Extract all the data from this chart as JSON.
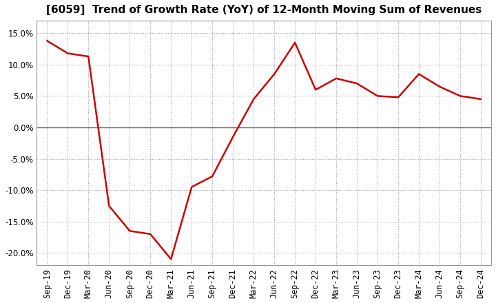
{
  "title": "[6059]  Trend of Growth Rate (YoY) of 12-Month Moving Sum of Revenues",
  "x_labels": [
    "Sep-19",
    "Dec-19",
    "Mar-20",
    "Jun-20",
    "Sep-20",
    "Dec-20",
    "Mar-21",
    "Jun-21",
    "Sep-21",
    "Dec-21",
    "Mar-22",
    "Jun-22",
    "Sep-22",
    "Dec-22",
    "Mar-23",
    "Jun-23",
    "Sep-23",
    "Dec-23",
    "Mar-24",
    "Jun-24",
    "Sep-24",
    "Dec-24"
  ],
  "y_values": [
    13.8,
    11.8,
    11.3,
    -12.5,
    -16.5,
    -17.0,
    -21.0,
    -9.5,
    -7.8,
    -1.5,
    4.5,
    8.5,
    13.5,
    6.0,
    7.8,
    7.0,
    5.0,
    4.8,
    8.5,
    6.5,
    5.0,
    4.5
  ],
  "line_color": "#cc0000",
  "line_width": 1.8,
  "ylim": [
    -22,
    17
  ],
  "yticks": [
    -20,
    -15,
    -10,
    -5,
    0,
    5,
    10,
    15
  ],
  "background_color": "#ffffff",
  "plot_bg_color": "#ffffff",
  "grid_color": "#999999",
  "zero_line_color": "#666666",
  "title_fontsize": 11,
  "tick_fontsize": 8.5
}
